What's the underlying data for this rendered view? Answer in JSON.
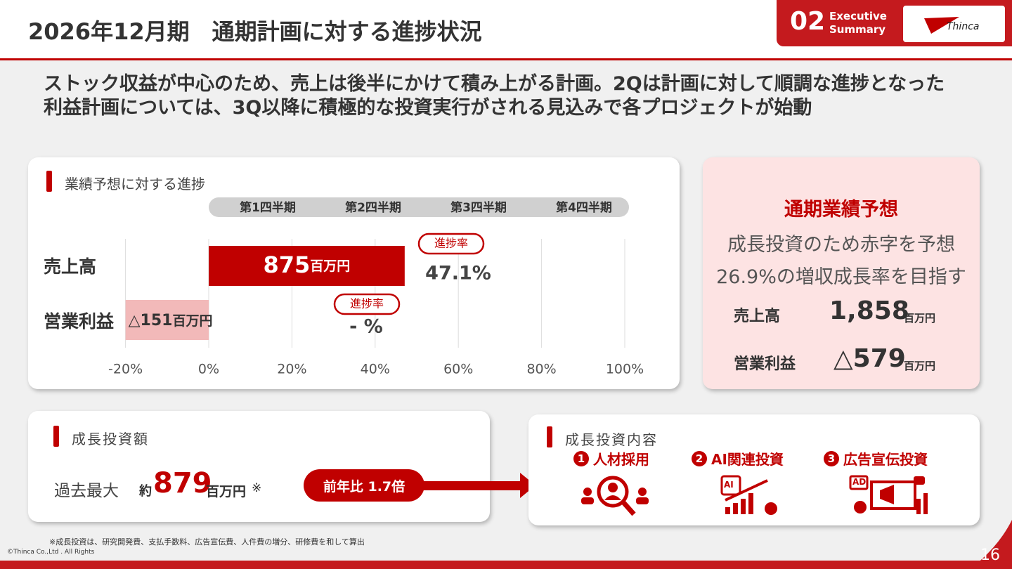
{
  "header": {
    "title": "2026年12月期　通期計画に対する進捗状況",
    "section_number": "02",
    "section_label": [
      "Executive",
      "Summary"
    ],
    "logo": "Thinca"
  },
  "lead": [
    "ストック収益が中心のため、売上は後半にかけて積み上がる計画。2Qは計画に対して順調な進捗となった",
    "利益計画については、3Q以降に積極的な投資実行がされる見込みで各プロジェクトが始動"
  ],
  "progress_panel": {
    "title": "業績予想に対する進捗",
    "chart_data": {
      "type": "bar",
      "orientation": "horizontal",
      "categories": [
        "売上高",
        "営業利益"
      ],
      "values": [
        47.1,
        -20
      ],
      "colors": [
        "#c00000",
        "#f2b9b9"
      ],
      "amounts": [
        "875",
        "△151"
      ],
      "amount_unit": "百万円",
      "progress_tag": "進捗率",
      "progress_labels": [
        "47.1%",
        "- %"
      ],
      "period_labels": [
        "第1四半期",
        "第2四半期",
        "第3四半期",
        "第4四半期"
      ],
      "xlim": [
        -20,
        100
      ],
      "xticks": [
        {
          "value": -20,
          "label": "-20%"
        },
        {
          "value": 0,
          "label": "0%"
        },
        {
          "value": 20,
          "label": "20%"
        },
        {
          "value": 40,
          "label": "40%"
        },
        {
          "value": 60,
          "label": "60%"
        },
        {
          "value": 80,
          "label": "80%"
        },
        {
          "value": 100,
          "label": "100%"
        }
      ],
      "grid": true
    }
  },
  "forecast_panel": {
    "title": "通期業績予想",
    "lines": [
      "成長投資のため赤字を予想",
      "26.9%の増収成長率を目指す"
    ],
    "rows": [
      {
        "label": "売上高",
        "value": "1,858",
        "unit": "百万円"
      },
      {
        "label": "営業利益",
        "value": "△579",
        "unit": "百万円"
      }
    ]
  },
  "investment_panel": {
    "title": "成長投資額",
    "label": "過去最大",
    "prefix": "約",
    "value": "879",
    "unit": "百万円",
    "mark": "※",
    "comparison": "前年比 1.7倍"
  },
  "content_panel": {
    "title": "成長投資内容",
    "items": [
      {
        "number": "1",
        "label": "人材採用"
      },
      {
        "number": "2",
        "label": "AI関連投資",
        "icon_text": "AI"
      },
      {
        "number": "3",
        "label": "広告宣伝投資",
        "icon_text": "AD"
      }
    ]
  },
  "footer": {
    "note": "※成長投資は、研究開発費、支払手数料、広告宣伝費、人件費の増分、研修費を和して算出",
    "copyright": "©Thinca Co.,Ltd . All Rights",
    "page": "16"
  }
}
